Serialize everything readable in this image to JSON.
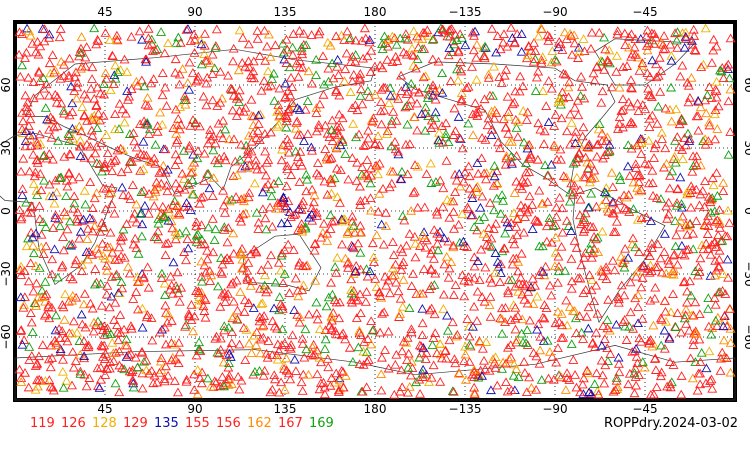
{
  "map": {
    "title": "ROPPdry.2024-03-02",
    "top_lon_labels": [
      "45",
      "90",
      "135",
      "180",
      "−135",
      "−90",
      "−45"
    ],
    "bottom_lon_labels": [
      "45",
      "90",
      "135",
      "180",
      "−135",
      "−90",
      "−45"
    ],
    "lat_labels": [
      "60",
      "30",
      "0",
      "−30",
      "−60"
    ],
    "legend": [
      {
        "label": "119",
        "color": "#ff2020"
      },
      {
        "label": "126",
        "color": "#ff2020"
      },
      {
        "label": "128",
        "color": "#f0b000"
      },
      {
        "label": "129",
        "color": "#ff2020"
      },
      {
        "label": "135",
        "color": "#1010b0"
      },
      {
        "label": "155",
        "color": "#ff2020"
      },
      {
        "label": "156",
        "color": "#ff2020"
      },
      {
        "label": "162",
        "color": "#ff8c00"
      },
      {
        "label": "167",
        "color": "#ff2020"
      },
      {
        "label": "169",
        "color": "#10a010"
      }
    ],
    "marker": "triangle-outline",
    "colors": {
      "coastline": "#333333",
      "grid": "#000000",
      "frame": "#000000"
    }
  }
}
